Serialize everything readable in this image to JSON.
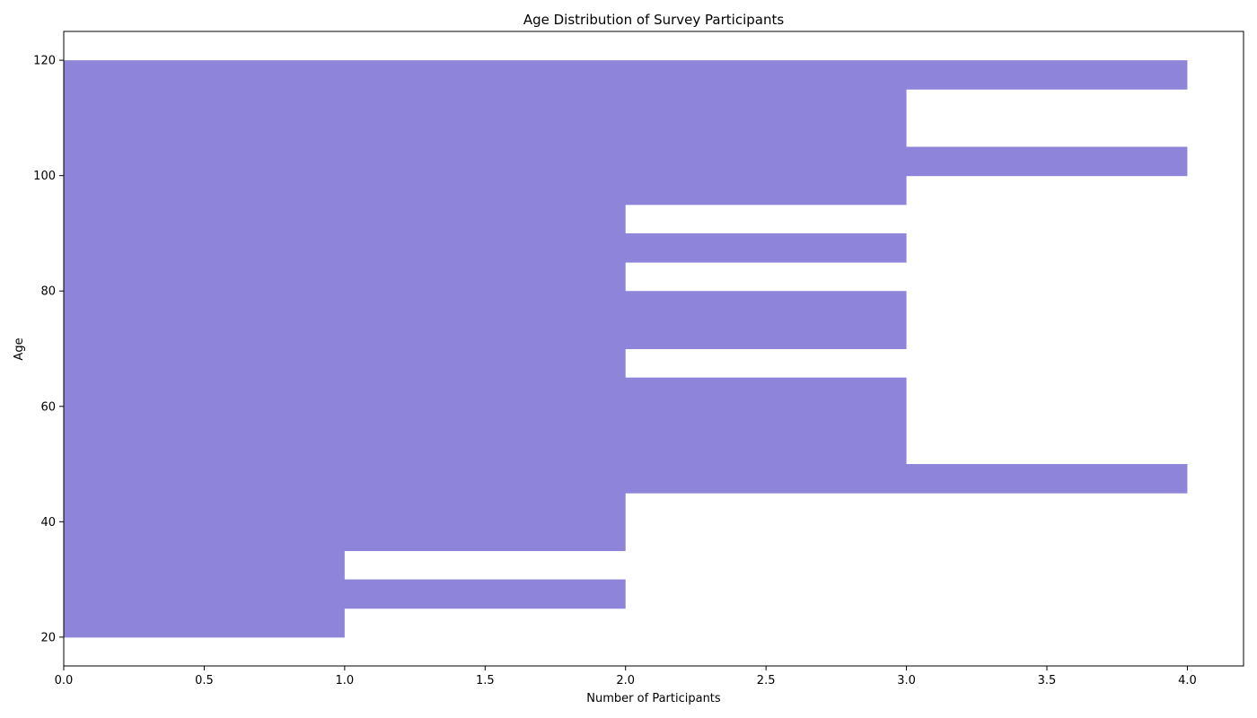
{
  "chart_data": {
    "type": "bar",
    "orientation": "horizontal",
    "title": "Age Distribution of Survey Participants",
    "xlabel": "Number of Participants",
    "ylabel": "Age",
    "xlim": [
      0,
      4.2
    ],
    "ylim": [
      15,
      125
    ],
    "xticks": [
      0.0,
      0.5,
      1.0,
      1.5,
      2.0,
      2.5,
      3.0,
      3.5,
      4.0
    ],
    "xtick_labels": [
      "0.0",
      "0.5",
      "1.0",
      "1.5",
      "2.0",
      "2.5",
      "3.0",
      "3.5",
      "4.0"
    ],
    "yticks": [
      20,
      40,
      60,
      80,
      100,
      120
    ],
    "ytick_labels": [
      "20",
      "40",
      "60",
      "80",
      "100",
      "120"
    ],
    "bin_edges": [
      20,
      25,
      30,
      35,
      40,
      45,
      50,
      55,
      60,
      65,
      70,
      75,
      80,
      85,
      90,
      95,
      100,
      105,
      110,
      115,
      120
    ],
    "values": [
      1,
      2,
      1,
      2,
      2,
      4,
      3,
      3,
      3,
      2,
      3,
      3,
      2,
      3,
      2,
      3,
      4,
      3,
      3,
      4
    ],
    "color": "#8e84d9",
    "grid": false,
    "legend": "none"
  }
}
